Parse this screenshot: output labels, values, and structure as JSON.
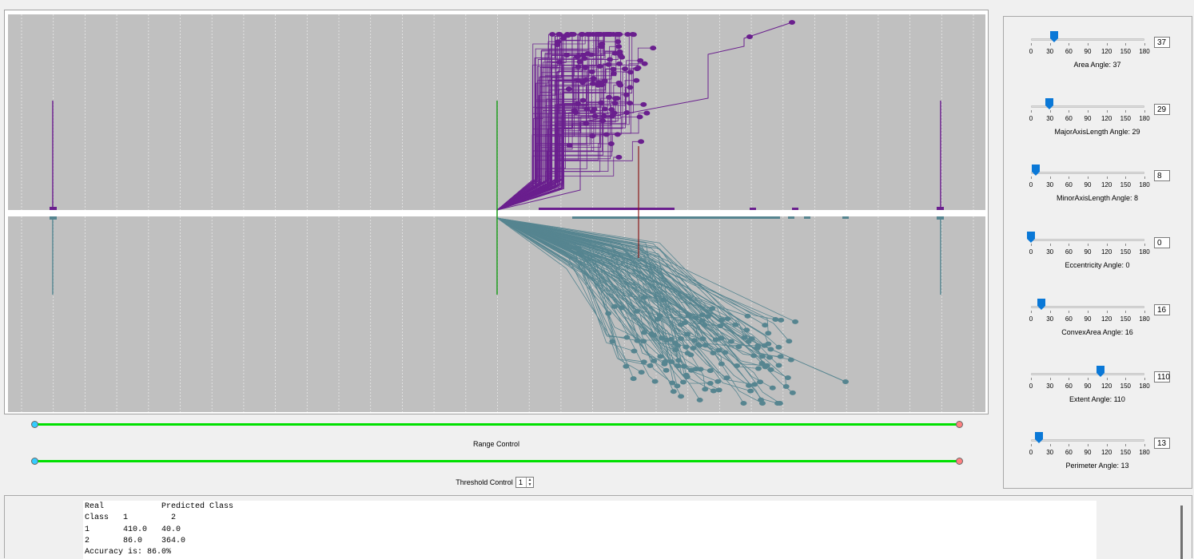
{
  "colors": {
    "plot_bg": "#c0c0c0",
    "grid": "#e8e8e8",
    "class1": "#6a1f8e",
    "class2": "#568590",
    "green_marker": "#1a9a1a",
    "red_marker": "#8b1a1a",
    "slider_green": "#00e000",
    "handle_left": "#33ccff",
    "handle_right": "#ff8080",
    "thumb": "#0a78d7"
  },
  "range_control": {
    "label": "Range Control"
  },
  "threshold_control": {
    "label": "Threshold Control",
    "value": "1"
  },
  "angles": {
    "tick_labels": [
      "0",
      "30",
      "60",
      "90",
      "120",
      "150",
      "180"
    ],
    "max": 180,
    "items": [
      {
        "name": "Area",
        "caption": "Area Angle: 37",
        "value": 37
      },
      {
        "name": "MajorAxisLength",
        "caption": "MajorAxisLength Angle: 29",
        "value": 29
      },
      {
        "name": "MinorAxisLength",
        "caption": "MinorAxisLength Angle: 8",
        "value": 8
      },
      {
        "name": "Eccentricity",
        "caption": "Eccentricity Angle: 0",
        "value": 0
      },
      {
        "name": "ConvexArea",
        "caption": "ConvexArea Angle: 16",
        "value": 16
      },
      {
        "name": "Extent",
        "caption": "Extent Angle: 110",
        "value": 110
      },
      {
        "name": "Perimeter",
        "caption": "Perimeter Angle: 13",
        "value": 13
      }
    ]
  },
  "output": {
    "lines": [
      "Real            Predicted Class",
      "Class   1         2",
      "1       410.0   40.0",
      "2       86.0    364.0",
      "Accuracy is: 86.0%"
    ]
  }
}
